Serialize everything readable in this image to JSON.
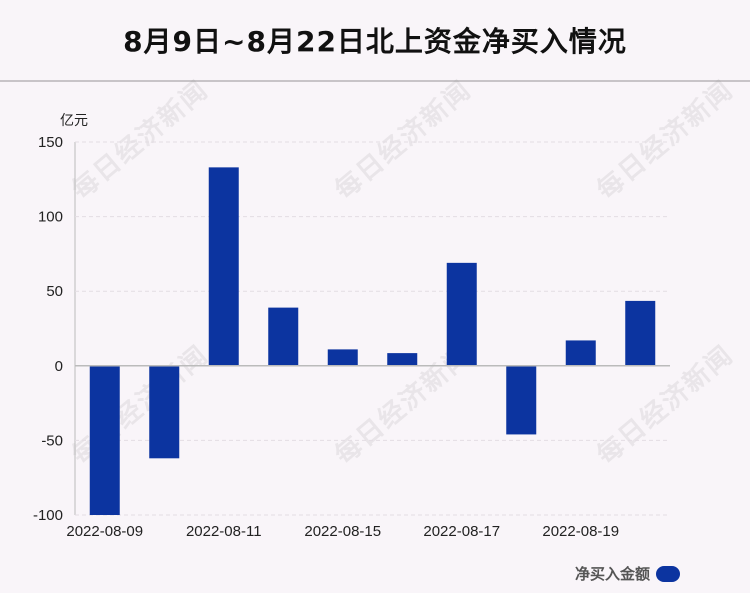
{
  "title": "8月9日~8月22日北上资金净买入情况",
  "watermark_text": "每日经济新闻",
  "colors": {
    "bar": "#0c34a0",
    "zero_line": "#bbbbbb",
    "grid": "#e3dde3"
  },
  "chart_data": {
    "type": "bar",
    "ylabel": "亿元",
    "ylim": [
      -100,
      150
    ],
    "yticks": [
      150,
      100,
      50,
      0,
      -50,
      -100
    ],
    "xtick_labels": [
      "2022-08-09",
      "2022-08-11",
      "2022-08-15",
      "2022-08-17",
      "2022-08-19"
    ],
    "grid": true,
    "legend_position": "bottom-right",
    "series": [
      {
        "name": "净买入金额",
        "values": [
          -100,
          -62,
          133,
          39,
          11,
          8.5,
          69,
          -46,
          17,
          43.5
        ]
      }
    ]
  }
}
